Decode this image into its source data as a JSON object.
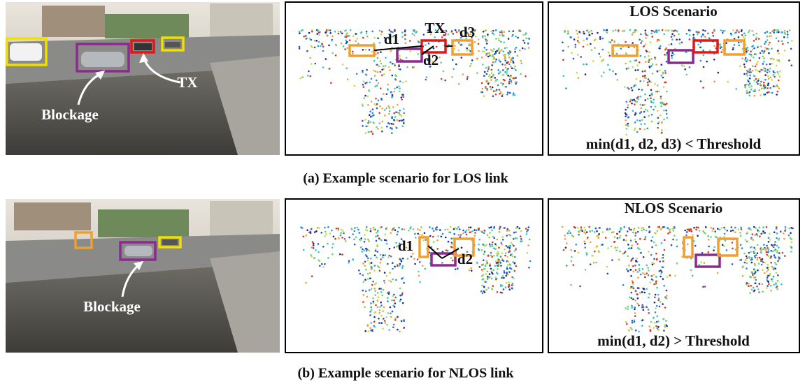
{
  "panels": [
    {
      "photo_labels": {
        "tx": "TX",
        "blockage": "Blockage"
      },
      "lidar_labels": {
        "d1": "d1",
        "tx": "TX",
        "d3": "d3",
        "d2": "d2"
      },
      "scenario_title": "LOS Scenario",
      "condition": "min(d1, d2, d3) < Threshold",
      "caption": "(a) Example scenario for LOS link"
    },
    {
      "photo_labels": {
        "blockage": "Blockage"
      },
      "lidar_labels": {
        "d1": "d1",
        "d2": "d2"
      },
      "scenario_title": "NLOS Scenario",
      "condition": "min(d1, d2) > Threshold",
      "caption": "(b) Example scenario for NLOS link"
    }
  ]
}
